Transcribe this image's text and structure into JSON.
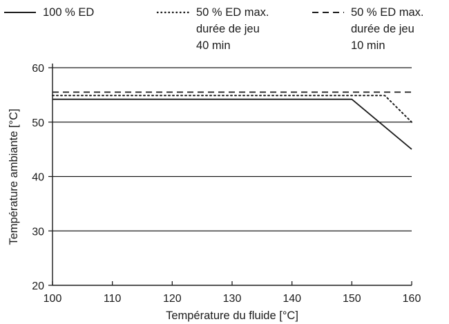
{
  "chart_data": {
    "type": "line",
    "xlabel": "Température du fluide [°C]",
    "ylabel": "Température ambiante [°C]",
    "xlim": [
      100,
      160
    ],
    "ylim": [
      20,
      60
    ],
    "xticks": [
      "100",
      "110",
      "120",
      "130",
      "140",
      "150",
      "160"
    ],
    "yticks": [
      "20",
      "30",
      "40",
      "50",
      "60"
    ],
    "grid": "horizontal",
    "legend_position": "top",
    "series": [
      {
        "name": "100 % ED",
        "name_lines": [
          "100 % ED"
        ],
        "style": "solid",
        "points": [
          [
            100,
            54.2
          ],
          [
            150,
            54.2
          ],
          [
            160,
            45
          ]
        ]
      },
      {
        "name": "50 % ED max. durée de jeu 40 min",
        "name_lines": [
          "50 % ED max.",
          "durée de jeu",
          "40 min"
        ],
        "style": "dotted",
        "points": [
          [
            100,
            54.9
          ],
          [
            155.5,
            54.9
          ],
          [
            160,
            50
          ]
        ]
      },
      {
        "name": "50 % ED max. durée de jeu 10 min",
        "name_lines": [
          "50 % ED max.",
          "durée de jeu",
          "10 min"
        ],
        "style": "dashed",
        "points": [
          [
            100,
            55.5
          ],
          [
            160,
            55.5
          ]
        ]
      }
    ],
    "colors": {
      "line": "#1a1a1a",
      "grid": "#1a1a1a",
      "background": "#ffffff"
    }
  }
}
